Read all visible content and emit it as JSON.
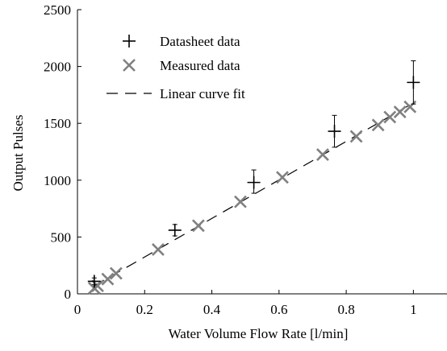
{
  "chart_data": {
    "type": "scatter",
    "title": "",
    "xlabel": "Water Volume Flow Rate [l/min]",
    "ylabel": "Output Pulses",
    "xlim": [
      0,
      1.1
    ],
    "ylim": [
      0,
      2500
    ],
    "xticks": [
      0,
      0.2,
      0.4,
      0.6,
      0.8,
      1
    ],
    "xtick_labels": [
      "0",
      "0.2",
      "0.4",
      "0.6",
      "0.8",
      "1"
    ],
    "yticks": [
      0,
      500,
      1000,
      1500,
      2000,
      2500
    ],
    "ytick_labels": [
      "0",
      "500",
      "1000",
      "1500",
      "2000",
      "2500"
    ],
    "grid": false,
    "legend_position": "top-left",
    "series": [
      {
        "name": "Datasheet data",
        "marker": "plus",
        "color": "#000000",
        "points": [
          {
            "x": 0.05,
            "y": 110,
            "err_low": 30,
            "err_high": 30
          },
          {
            "x": 0.29,
            "y": 560,
            "err_low": 50,
            "err_high": 50
          },
          {
            "x": 0.525,
            "y": 980,
            "err_low": 95,
            "err_high": 110
          },
          {
            "x": 0.765,
            "y": 1430,
            "err_low": 140,
            "err_high": 140
          },
          {
            "x": 1.0,
            "y": 1860,
            "err_low": 190,
            "err_high": 190
          }
        ]
      },
      {
        "name": "Measured data",
        "marker": "x",
        "color": "#808080",
        "points": [
          {
            "x": 0.05,
            "y": 50
          },
          {
            "x": 0.06,
            "y": 70
          },
          {
            "x": 0.09,
            "y": 130
          },
          {
            "x": 0.115,
            "y": 180
          },
          {
            "x": 0.24,
            "y": 390
          },
          {
            "x": 0.36,
            "y": 600
          },
          {
            "x": 0.485,
            "y": 810
          },
          {
            "x": 0.61,
            "y": 1025
          },
          {
            "x": 0.73,
            "y": 1225
          },
          {
            "x": 0.83,
            "y": 1385
          },
          {
            "x": 0.895,
            "y": 1485
          },
          {
            "x": 0.93,
            "y": 1555
          },
          {
            "x": 0.96,
            "y": 1600
          },
          {
            "x": 0.99,
            "y": 1645
          }
        ]
      },
      {
        "name": "Linear curve fit",
        "style": "dashed",
        "color": "#000000",
        "x": [
          0.05,
          1.0
        ],
        "y": [
          70,
          1680
        ]
      }
    ]
  }
}
